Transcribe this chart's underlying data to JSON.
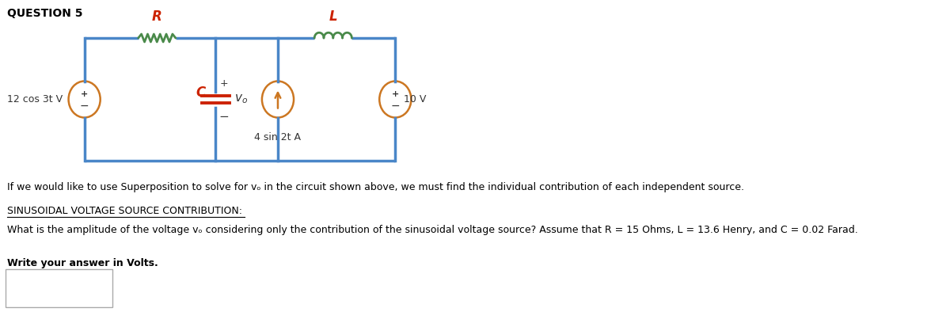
{
  "title": "QUESTION 5",
  "title_fontsize": 10,
  "title_fontweight": "bold",
  "bg_color": "#ffffff",
  "circuit": {
    "wire_color": "#4a86c8",
    "wire_lw": 2.5,
    "resistor_color": "#4a8a4a",
    "inductor_color": "#4a8a4a",
    "capacitor_color": "#cc2200",
    "source_color": "#cc7722",
    "label_R": "R",
    "label_L": "L",
    "label_C": "C",
    "label_R_color": "#cc2200",
    "label_L_color": "#cc2200",
    "label_C_color": "#cc2200",
    "vs1_label": "12 cos 3t V",
    "cs_label": "4 sin 2t A",
    "vs2_label": "10 V"
  },
  "text_line1": "If we would like to use Superposition to solve for vₒ in the circuit shown above, we must find the individual contribution of each independent source.",
  "text_line2": "SINUSOIDAL VOLTAGE SOURCE CONTRIBUTION:",
  "text_line3": "What is the amplitude of the voltage vₒ considering only the contribution of the sinusoidal voltage source? Assume that R = 15 Ohms, L = 13.6 Henry, and C = 0.02 Farad.",
  "text_line4": "Write your answer in Volts.",
  "text_fontsize": 9,
  "underline_line2": true,
  "answer_box": true
}
